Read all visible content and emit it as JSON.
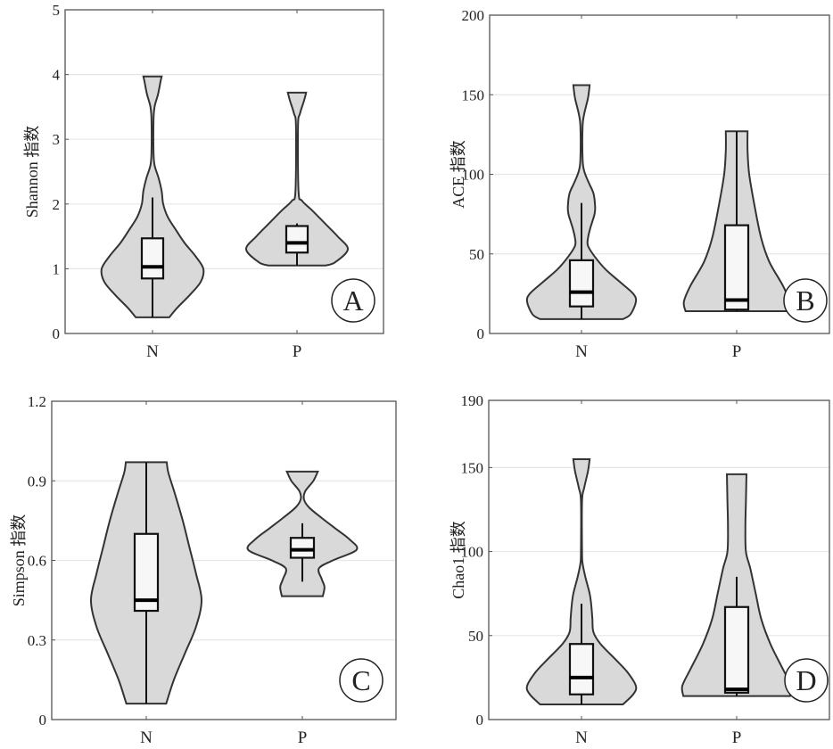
{
  "chart_data": [
    {
      "type": "violin",
      "panel_label": "A",
      "ylabel": "Shannon 指数",
      "ylim": [
        0,
        5
      ],
      "yticks": [
        0,
        1,
        2,
        3,
        4,
        5
      ],
      "categories": [
        "N",
        "P"
      ],
      "grid": "horizontal",
      "fill_color": "#d9d9d9",
      "box_fill": "#f7f7f7",
      "violins": [
        {
          "category": "N",
          "density": [
            [
              0.25,
              0.33
            ],
            [
              0.4,
              0.49
            ],
            [
              0.6,
              0.74
            ],
            [
              0.8,
              0.95
            ],
            [
              1.0,
              1.0
            ],
            [
              1.2,
              0.84
            ],
            [
              1.4,
              0.63
            ],
            [
              1.6,
              0.46
            ],
            [
              1.8,
              0.3
            ],
            [
              2.0,
              0.21
            ],
            [
              2.2,
              0.18
            ],
            [
              2.4,
              0.12
            ],
            [
              2.6,
              0.04
            ],
            [
              2.8,
              0.02
            ],
            [
              3.3,
              0.02
            ],
            [
              3.5,
              0.04
            ],
            [
              3.7,
              0.11
            ],
            [
              3.9,
              0.16
            ],
            [
              3.97,
              0.18
            ]
          ],
          "box": {
            "whisker_low": 0.25,
            "q1": 0.85,
            "median": 1.03,
            "q3": 1.47,
            "whisker_high": 2.1
          }
        },
        {
          "category": "P",
          "density": [
            [
              1.05,
              0.56
            ],
            [
              1.1,
              0.75
            ],
            [
              1.3,
              1.0
            ],
            [
              1.5,
              0.8
            ],
            [
              1.7,
              0.55
            ],
            [
              1.9,
              0.3
            ],
            [
              2.05,
              0.1
            ],
            [
              2.2,
              0.03
            ],
            [
              3.2,
              0.02
            ],
            [
              3.4,
              0.06
            ],
            [
              3.6,
              0.14
            ],
            [
              3.72,
              0.18
            ]
          ],
          "box": {
            "whisker_low": 1.05,
            "q1": 1.25,
            "median": 1.4,
            "q3": 1.66,
            "whisker_high": 1.7
          }
        }
      ]
    },
    {
      "type": "violin",
      "panel_label": "B",
      "ylabel": "ACE 指数",
      "ylim": [
        0,
        200
      ],
      "yticks": [
        0,
        50,
        100,
        150,
        200
      ],
      "categories": [
        "N",
        "P"
      ],
      "grid": "horizontal",
      "fill_color": "#d9d9d9",
      "box_fill": "#f7f7f7",
      "violins": [
        {
          "category": "N",
          "density": [
            [
              9,
              0.76
            ],
            [
              12,
              0.9
            ],
            [
              20,
              1.0
            ],
            [
              25,
              0.95
            ],
            [
              32,
              0.72
            ],
            [
              40,
              0.45
            ],
            [
              48,
              0.25
            ],
            [
              55,
              0.12
            ],
            [
              60,
              0.12
            ],
            [
              66,
              0.16
            ],
            [
              75,
              0.24
            ],
            [
              80,
              0.25
            ],
            [
              88,
              0.22
            ],
            [
              95,
              0.13
            ],
            [
              102,
              0.05
            ],
            [
              110,
              0.02
            ],
            [
              130,
              0.02
            ],
            [
              138,
              0.05
            ],
            [
              148,
              0.12
            ],
            [
              156,
              0.15
            ]
          ],
          "box": {
            "whisker_low": 9,
            "q1": 17,
            "median": 26,
            "q3": 46,
            "whisker_high": 82
          }
        },
        {
          "category": "P",
          "density": [
            [
              14,
              0.94
            ],
            [
              20,
              0.97
            ],
            [
              30,
              0.85
            ],
            [
              45,
              0.6
            ],
            [
              60,
              0.45
            ],
            [
              80,
              0.33
            ],
            [
              100,
              0.23
            ],
            [
              115,
              0.2
            ],
            [
              127,
              0.2
            ]
          ],
          "box": {
            "whisker_low": 14,
            "q1": 15,
            "median": 21,
            "q3": 68,
            "whisker_high": 127
          }
        }
      ]
    },
    {
      "type": "violin",
      "panel_label": "C",
      "ylabel": "Simpson 指数",
      "ylim": [
        0,
        1.2
      ],
      "yticks": [
        0,
        0.3,
        0.6,
        0.9,
        1.2
      ],
      "ytick_labels": [
        "0",
        "0.3",
        "0.6",
        "0.9",
        "1.2"
      ],
      "categories": [
        "N",
        "P"
      ],
      "grid": "horizontal",
      "fill_color": "#d9d9d9",
      "box_fill": "#f7f7f7",
      "violins": [
        {
          "category": "N",
          "density": [
            [
              0.06,
              0.36
            ],
            [
              0.15,
              0.5
            ],
            [
              0.25,
              0.7
            ],
            [
              0.35,
              0.9
            ],
            [
              0.45,
              1.0
            ],
            [
              0.55,
              0.9
            ],
            [
              0.65,
              0.78
            ],
            [
              0.75,
              0.66
            ],
            [
              0.85,
              0.52
            ],
            [
              0.93,
              0.4
            ],
            [
              0.97,
              0.37
            ]
          ],
          "box": {
            "whisker_low": 0.06,
            "q1": 0.41,
            "median": 0.45,
            "q3": 0.7,
            "whisker_high": 0.97
          }
        },
        {
          "category": "P",
          "density": [
            [
              0.465,
              0.37
            ],
            [
              0.5,
              0.4
            ],
            [
              0.53,
              0.35
            ],
            [
              0.57,
              0.3
            ],
            [
              0.6,
              0.55
            ],
            [
              0.64,
              0.98
            ],
            [
              0.68,
              0.85
            ],
            [
              0.72,
              0.6
            ],
            [
              0.76,
              0.35
            ],
            [
              0.8,
              0.12
            ],
            [
              0.83,
              0.03
            ],
            [
              0.86,
              0.05
            ],
            [
              0.9,
              0.2
            ],
            [
              0.935,
              0.28
            ]
          ],
          "box": {
            "whisker_low": 0.52,
            "q1": 0.61,
            "median": 0.64,
            "q3": 0.685,
            "whisker_high": 0.74
          }
        }
      ]
    },
    {
      "type": "violin",
      "panel_label": "D",
      "ylabel": "Chao1 指数",
      "ylim": [
        0,
        190
      ],
      "yticks": [
        0,
        50,
        100,
        150,
        190
      ],
      "categories": [
        "N",
        "P"
      ],
      "grid": "horizontal",
      "fill_color": "#d9d9d9",
      "box_fill": "#f7f7f7",
      "violins": [
        {
          "category": "N",
          "density": [
            [
              9,
              0.76
            ],
            [
              15,
              0.95
            ],
            [
              20,
              1.0
            ],
            [
              28,
              0.85
            ],
            [
              35,
              0.65
            ],
            [
              45,
              0.35
            ],
            [
              52,
              0.22
            ],
            [
              60,
              0.2
            ],
            [
              68,
              0.18
            ],
            [
              75,
              0.15
            ],
            [
              85,
              0.07
            ],
            [
              93,
              0.02
            ],
            [
              100,
              0.01
            ],
            [
              130,
              0.01
            ],
            [
              138,
              0.05
            ],
            [
              148,
              0.12
            ],
            [
              155,
              0.15
            ]
          ],
          "box": {
            "whisker_low": 9,
            "q1": 15,
            "median": 25,
            "q3": 45,
            "whisker_high": 69
          }
        },
        {
          "category": "P",
          "density": [
            [
              14,
              0.98
            ],
            [
              20,
              1.0
            ],
            [
              30,
              0.85
            ],
            [
              45,
              0.62
            ],
            [
              60,
              0.45
            ],
            [
              75,
              0.35
            ],
            [
              90,
              0.25
            ],
            [
              100,
              0.17
            ],
            [
              115,
              0.16
            ],
            [
              130,
              0.17
            ],
            [
              146,
              0.18
            ]
          ],
          "box": {
            "whisker_low": 14,
            "q1": 16,
            "median": 18,
            "q3": 67,
            "whisker_high": 85
          }
        }
      ]
    }
  ]
}
